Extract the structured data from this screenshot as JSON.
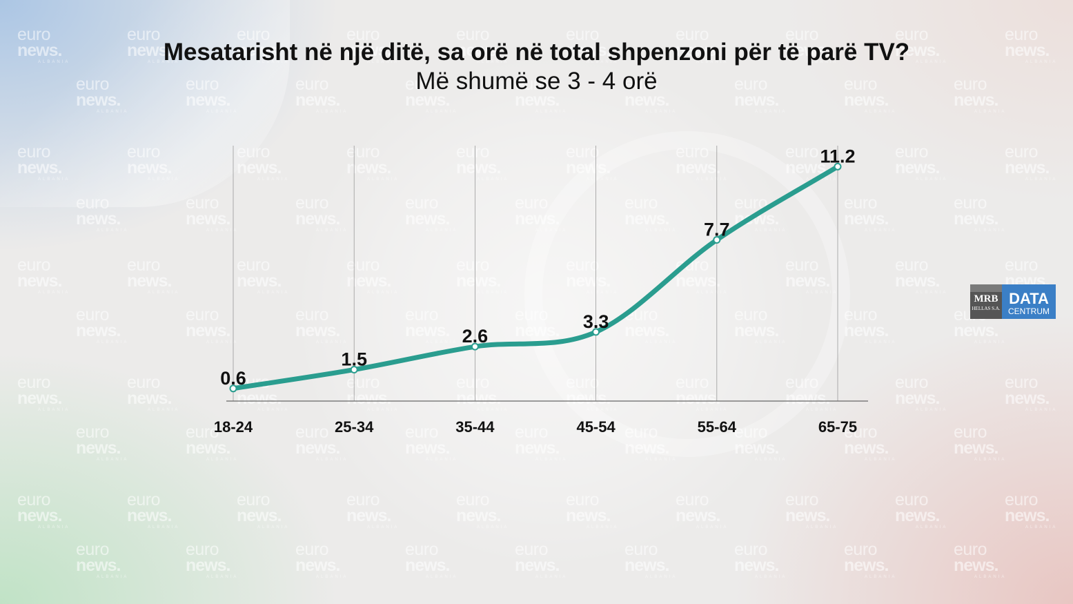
{
  "header": {
    "title": "Mesatarisht në një ditë, sa orë në total shpenzoni për të parë TV?",
    "subtitle": "Më shumë se 3 - 4 orë"
  },
  "watermark": {
    "line1": "euro",
    "line2": "news.",
    "line3": "ALBANIA"
  },
  "logo": {
    "mrb": "MRB",
    "mrb_sub": "HELLAS S.A.",
    "data": "DATA",
    "data_sub": "CENTRUM"
  },
  "colors": {
    "line": "#2a9d8f",
    "text": "#111111",
    "grid": "#9a9a9a",
    "logo_blue": "#3b7fc6"
  },
  "chart_data": {
    "type": "line",
    "categories": [
      "18-24",
      "25-34",
      "35-44",
      "45-54",
      "55-64",
      "65-75"
    ],
    "series": [
      {
        "values": [
          0.6,
          1.5,
          2.6,
          3.3,
          7.7,
          11.2
        ],
        "labels": [
          "0.6",
          "1.5",
          "2.6",
          "3.3",
          "7.7",
          "11.2"
        ]
      }
    ],
    "ylim": [
      0,
      12.2
    ],
    "grid": "vertical",
    "smooth": true
  }
}
